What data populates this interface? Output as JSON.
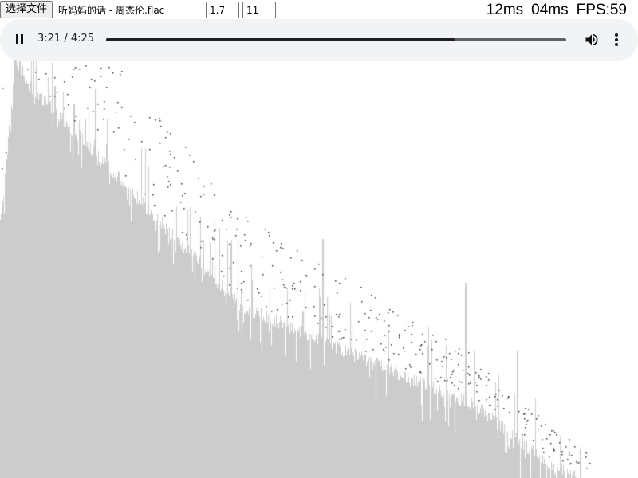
{
  "file_picker": {
    "button_label": "选择文件",
    "file_name": "听妈妈的话 - 周杰伦.flac"
  },
  "inputs": {
    "first_value": "1.7",
    "second_value": "11"
  },
  "stats": {
    "timing_1": "12ms",
    "timing_2": "04ms",
    "fps": "FPS:59"
  },
  "player": {
    "time": "3:21 / 4:25",
    "progress": 0.758,
    "state": "playing",
    "play_icon": "pause-icon",
    "volume_icon": "volume-icon",
    "menu_icon": "more-vert-icon"
  },
  "visualizer": {
    "type": "spectrum",
    "bar_color": "#cccccc",
    "dot_color": "#333333"
  }
}
